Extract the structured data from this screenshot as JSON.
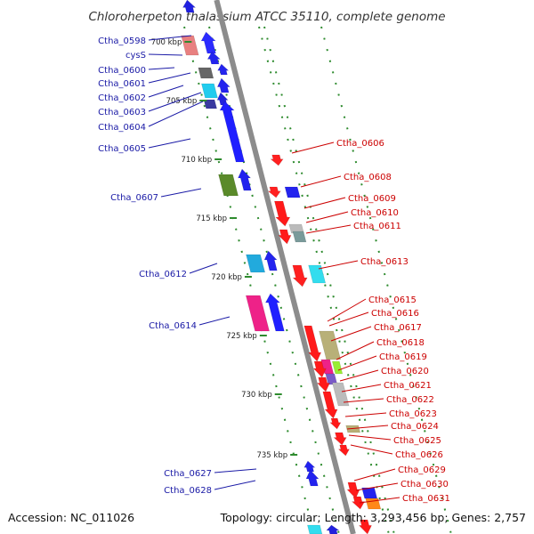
{
  "title": "Chloroherpeton thalassium ATCC 35110, complete genome",
  "accession": "Accession: NC_011026",
  "topology": "Topology: circular; Length: 3,293,456 bp; Genes: 2,757",
  "colors": {
    "forward_label": "#1a1aa6",
    "reverse_label": "#cc0000",
    "tick": "#2e8b2e",
    "backbone": "#8c8c8c"
  },
  "scale": {
    "unit": "kbp",
    "ticks": [
      {
        "label": "700 kbp"
      },
      {
        "label": "705 kbp"
      },
      {
        "label": "710 kbp"
      },
      {
        "label": "715 kbp"
      },
      {
        "label": "720 kbp"
      },
      {
        "label": "725 kbp"
      },
      {
        "label": "730 kbp"
      },
      {
        "label": "735 kbp"
      }
    ]
  },
  "forward_labels": [
    "Ctha_0598",
    "cysS",
    "Ctha_0600",
    "Ctha_0601",
    "Ctha_0602",
    "Ctha_0603",
    "Ctha_0604",
    "Ctha_0605",
    "Ctha_0607",
    "Ctha_0612",
    "Ctha_0614",
    "Ctha_0627",
    "Ctha_0628"
  ],
  "reverse_labels": [
    "Ctha_0606",
    "Ctha_0608",
    "Ctha_0609",
    "Ctha_0610",
    "Ctha_0611",
    "Ctha_0613",
    "Ctha_0615",
    "Ctha_0616",
    "Ctha_0617",
    "Ctha_0618",
    "Ctha_0619",
    "Ctha_0620",
    "Ctha_0621",
    "Ctha_0622",
    "Ctha_0623",
    "Ctha_0624",
    "Ctha_0625",
    "Ctha_0626",
    "Ctha_0629",
    "Ctha_0630",
    "Ctha_0631"
  ]
}
